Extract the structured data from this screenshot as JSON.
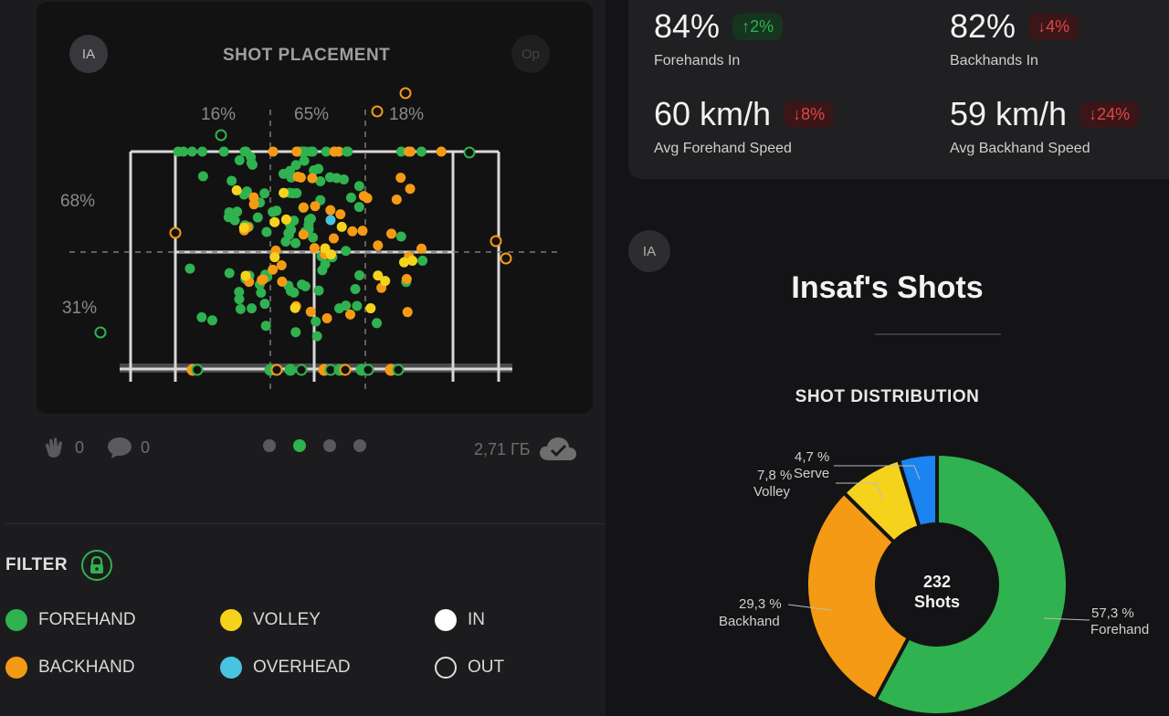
{
  "placement": {
    "title": "SHOT PLACEMENT",
    "avatar_left": "IA",
    "avatar_right": "Op",
    "pct_left_top": "16%",
    "pct_center_top": "65%",
    "pct_right_top": "18%",
    "pct_side_upper": "68%",
    "pct_side_lower": "31%"
  },
  "footer": {
    "claps": "0",
    "comments": "0",
    "size": "2,71 ГБ",
    "page_dots": 4,
    "active_dot": 1
  },
  "filter": {
    "label": "FILTER",
    "items": [
      {
        "label": "FOREHAND",
        "color": "#2fb24f"
      },
      {
        "label": "VOLLEY",
        "color": "#f5d31c"
      },
      {
        "label": "IN",
        "color": "#ffffff"
      },
      {
        "label": "BACKHAND",
        "color": "#f59a14"
      },
      {
        "label": "OVERHEAD",
        "color": "#48c3e0"
      },
      {
        "label": "OUT",
        "color": "outline"
      }
    ]
  },
  "stats": [
    {
      "value": "84%",
      "change": "↑2%",
      "direction": "up",
      "label": "Forehands In"
    },
    {
      "value": "82%",
      "change": "↓4%",
      "direction": "down",
      "label": "Backhands In"
    },
    {
      "value": "60 km/h",
      "change": "↓8%",
      "direction": "down",
      "label": "Avg Forehand Speed"
    },
    {
      "value": "59 km/h",
      "change": "↓24%",
      "direction": "down",
      "label": "Avg Backhand Speed"
    }
  ],
  "player": {
    "avatar": "IA",
    "title": "Insaf's Shots"
  },
  "distribution": {
    "title": "SHOT DISTRIBUTION",
    "total": "232",
    "total_label": "Shots"
  },
  "chart_data": {
    "type": "pie",
    "title": "SHOT DISTRIBUTION",
    "categories": [
      "Forehand",
      "Backhand",
      "Volley",
      "Serve"
    ],
    "values": [
      57.3,
      29.3,
      7.8,
      4.7
    ],
    "labels": [
      "57,3 %",
      "29,3 %",
      "7,8 %",
      "4,7 %"
    ],
    "colors": [
      "#2fb24f",
      "#f59a14",
      "#f5d31c",
      "#1a84f0"
    ]
  },
  "colors": {
    "forehand": "#2fb24f",
    "backhand": "#f59a14",
    "volley": "#f5d31c",
    "overhead": "#48c3e0",
    "serve": "#1a84f0"
  }
}
